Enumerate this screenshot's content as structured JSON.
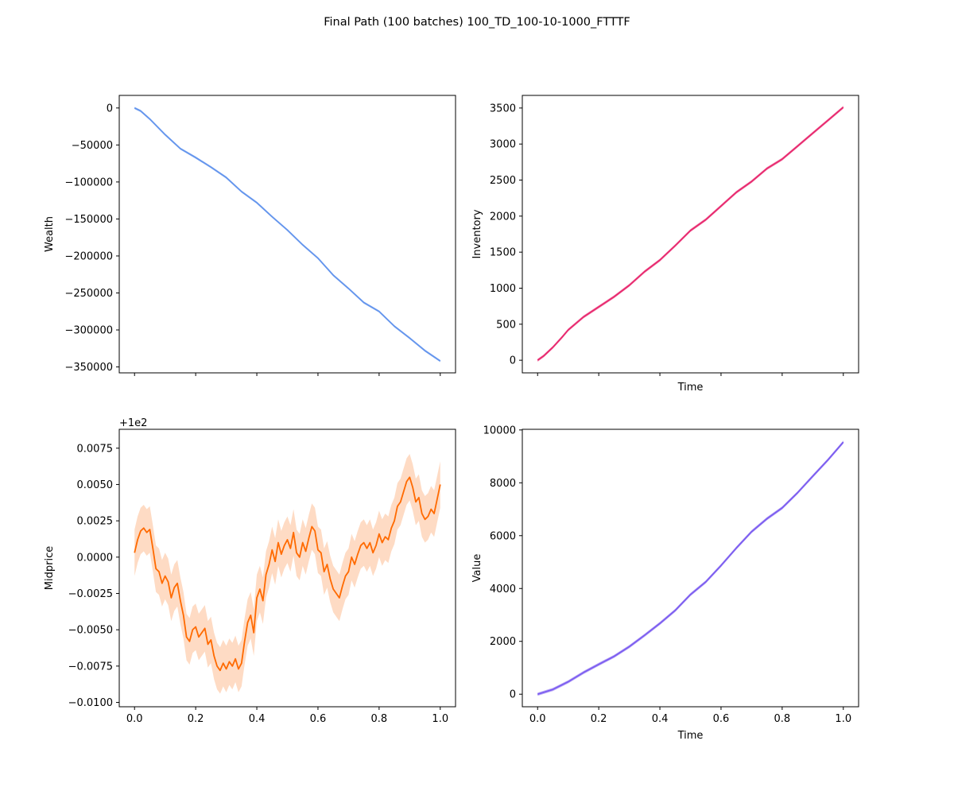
{
  "figure": {
    "title": "Final Path (100 batches) 100_TD_100-10-1000_FTTTF"
  },
  "chart_data": [
    {
      "id": "wealth",
      "type": "line",
      "title": "",
      "xlabel": "",
      "ylabel": "Wealth",
      "xlim": [
        -0.05,
        1.05
      ],
      "ylim": [
        -358000,
        17000
      ],
      "show_xtick_labels": false,
      "x_ticks": [
        0.0,
        0.2,
        0.4,
        0.6,
        0.8,
        1.0
      ],
      "y_ticks": [
        0,
        -50000,
        -100000,
        -150000,
        -200000,
        -250000,
        -300000,
        -350000
      ],
      "y_tick_labels": [
        "0",
        "−50000",
        "−100000",
        "−150000",
        "−200000",
        "−250000",
        "−300000",
        "−350000"
      ],
      "offset_text": "",
      "color": "#6495ED",
      "band_color": "#6495ED",
      "series": [
        {
          "x": [
            0.0,
            0.02,
            0.05,
            0.1,
            0.15,
            0.2,
            0.25,
            0.3,
            0.35,
            0.4,
            0.45,
            0.5,
            0.55,
            0.6,
            0.65,
            0.7,
            0.75,
            0.8,
            0.85,
            0.9,
            0.95,
            1.0
          ],
          "y": [
            0,
            -4000,
            -15000,
            -36000,
            -55000,
            -67000,
            -80000,
            -94000,
            -113000,
            -128000,
            -147000,
            -165000,
            -185000,
            -203000,
            -226000,
            -244000,
            -263000,
            -275000,
            -295000,
            -311000,
            -328000,
            -342000
          ],
          "band": 1500
        }
      ]
    },
    {
      "id": "inventory",
      "type": "line",
      "title": "",
      "xlabel": "Time",
      "ylabel": "Inventory",
      "xlim": [
        -0.05,
        1.05
      ],
      "ylim": [
        -175,
        3675
      ],
      "show_xtick_labels": false,
      "x_ticks": [
        0.0,
        0.2,
        0.4,
        0.6,
        0.8,
        1.0
      ],
      "y_ticks": [
        0,
        500,
        1000,
        1500,
        2000,
        2500,
        3000,
        3500
      ],
      "y_tick_labels": [
        "0",
        "500",
        "1000",
        "1500",
        "2000",
        "2500",
        "3000",
        "3500"
      ],
      "offset_text": "",
      "color": "#E8286E",
      "band_color": "#E8286E",
      "series": [
        {
          "x": [
            0.0,
            0.02,
            0.05,
            0.08,
            0.1,
            0.15,
            0.2,
            0.25,
            0.3,
            0.35,
            0.4,
            0.45,
            0.5,
            0.55,
            0.6,
            0.65,
            0.7,
            0.75,
            0.8,
            0.85,
            0.9,
            0.95,
            1.0
          ],
          "y": [
            0,
            60,
            180,
            320,
            420,
            600,
            740,
            880,
            1040,
            1230,
            1390,
            1590,
            1800,
            1950,
            2140,
            2330,
            2480,
            2660,
            2790,
            2970,
            3150,
            3330,
            3510
          ],
          "band": 20
        }
      ]
    },
    {
      "id": "midprice",
      "type": "line",
      "title": "",
      "xlabel": "",
      "ylabel": "Midprice",
      "xlim": [
        -0.05,
        1.05
      ],
      "ylim": [
        -0.0103,
        0.0088
      ],
      "show_xtick_labels": true,
      "x_ticks": [
        0.0,
        0.2,
        0.4,
        0.6,
        0.8,
        1.0
      ],
      "x_tick_labels": [
        "0.0",
        "0.2",
        "0.4",
        "0.6",
        "0.8",
        "1.0"
      ],
      "y_ticks": [
        0.0075,
        0.005,
        0.0025,
        0.0,
        -0.0025,
        -0.005,
        -0.0075,
        -0.01
      ],
      "y_tick_labels": [
        "0.0075",
        "0.0050",
        "0.0025",
        "0.0000",
        "−0.0025",
        "−0.0050",
        "−0.0075",
        "−0.0100"
      ],
      "offset_text": "+1e2",
      "color": "#FF6A00",
      "band_color": "#FDB88A",
      "series": [
        {
          "x": [
            0.0,
            0.01,
            0.02,
            0.03,
            0.04,
            0.05,
            0.06,
            0.07,
            0.08,
            0.09,
            0.1,
            0.11,
            0.12,
            0.13,
            0.14,
            0.15,
            0.16,
            0.17,
            0.18,
            0.19,
            0.2,
            0.21,
            0.22,
            0.23,
            0.24,
            0.25,
            0.26,
            0.27,
            0.28,
            0.29,
            0.3,
            0.31,
            0.32,
            0.33,
            0.34,
            0.35,
            0.36,
            0.37,
            0.38,
            0.39,
            0.4,
            0.41,
            0.42,
            0.43,
            0.44,
            0.45,
            0.46,
            0.47,
            0.48,
            0.49,
            0.5,
            0.51,
            0.52,
            0.53,
            0.54,
            0.55,
            0.56,
            0.57,
            0.58,
            0.59,
            0.6,
            0.61,
            0.62,
            0.63,
            0.64,
            0.65,
            0.66,
            0.67,
            0.68,
            0.69,
            0.7,
            0.71,
            0.72,
            0.73,
            0.74,
            0.75,
            0.76,
            0.77,
            0.78,
            0.79,
            0.8,
            0.81,
            0.82,
            0.83,
            0.84,
            0.85,
            0.86,
            0.87,
            0.88,
            0.89,
            0.9,
            0.91,
            0.92,
            0.93,
            0.94,
            0.95,
            0.96,
            0.97,
            0.98,
            0.99,
            1.0
          ],
          "y": [
            0.0003,
            0.0012,
            0.0018,
            0.002,
            0.0017,
            0.0019,
            0.0006,
            -0.0008,
            -0.001,
            -0.0018,
            -0.0013,
            -0.0017,
            -0.0028,
            -0.0021,
            -0.0018,
            -0.003,
            -0.004,
            -0.0055,
            -0.0058,
            -0.005,
            -0.0048,
            -0.0055,
            -0.0052,
            -0.0049,
            -0.006,
            -0.0057,
            -0.0068,
            -0.0075,
            -0.0078,
            -0.0073,
            -0.0077,
            -0.0072,
            -0.0075,
            -0.007,
            -0.0077,
            -0.0073,
            -0.0058,
            -0.0045,
            -0.004,
            -0.0052,
            -0.0028,
            -0.0022,
            -0.003,
            -0.0012,
            -0.0005,
            0.0005,
            -0.0003,
            0.001,
            0.0002,
            0.0008,
            0.0012,
            0.0006,
            0.0017,
            0.0003,
            0.0,
            0.001,
            0.0004,
            0.0013,
            0.0021,
            0.0018,
            0.0005,
            0.0003,
            -0.001,
            -0.0005,
            -0.0015,
            -0.0022,
            -0.0025,
            -0.0028,
            -0.002,
            -0.0013,
            -0.001,
            0.0,
            -0.0005,
            0.0002,
            0.0008,
            0.001,
            0.0006,
            0.001,
            0.0003,
            0.0008,
            0.0016,
            0.001,
            0.0014,
            0.0012,
            0.002,
            0.0025,
            0.0035,
            0.0038,
            0.0045,
            0.0052,
            0.0055,
            0.0048,
            0.0038,
            0.0041,
            0.003,
            0.0026,
            0.0028,
            0.0033,
            0.003,
            0.004,
            0.005
          ],
          "band": 0.0016
        }
      ]
    },
    {
      "id": "value",
      "type": "line",
      "title": "",
      "xlabel": "Time",
      "ylabel": "Value",
      "xlim": [
        -0.05,
        1.05
      ],
      "ylim": [
        -475,
        10025
      ],
      "show_xtick_labels": true,
      "x_ticks": [
        0.0,
        0.2,
        0.4,
        0.6,
        0.8,
        1.0
      ],
      "x_tick_labels": [
        "0.0",
        "0.2",
        "0.4",
        "0.6",
        "0.8",
        "1.0"
      ],
      "y_ticks": [
        0,
        2000,
        4000,
        6000,
        8000,
        10000
      ],
      "y_tick_labels": [
        "0",
        "2000",
        "4000",
        "6000",
        "8000",
        "10000"
      ],
      "offset_text": "",
      "color": "#7B5CF0",
      "band_color": "#7B5CF0",
      "series": [
        {
          "x": [
            0.0,
            0.05,
            0.1,
            0.15,
            0.2,
            0.25,
            0.3,
            0.35,
            0.4,
            0.45,
            0.5,
            0.55,
            0.6,
            0.65,
            0.7,
            0.75,
            0.8,
            0.85,
            0.9,
            0.95,
            1.0
          ],
          "y": [
            0,
            180,
            470,
            820,
            1130,
            1430,
            1800,
            2230,
            2680,
            3170,
            3770,
            4250,
            4870,
            5530,
            6150,
            6640,
            7050,
            7620,
            8250,
            8870,
            9540
          ],
          "band": 60
        }
      ]
    }
  ]
}
